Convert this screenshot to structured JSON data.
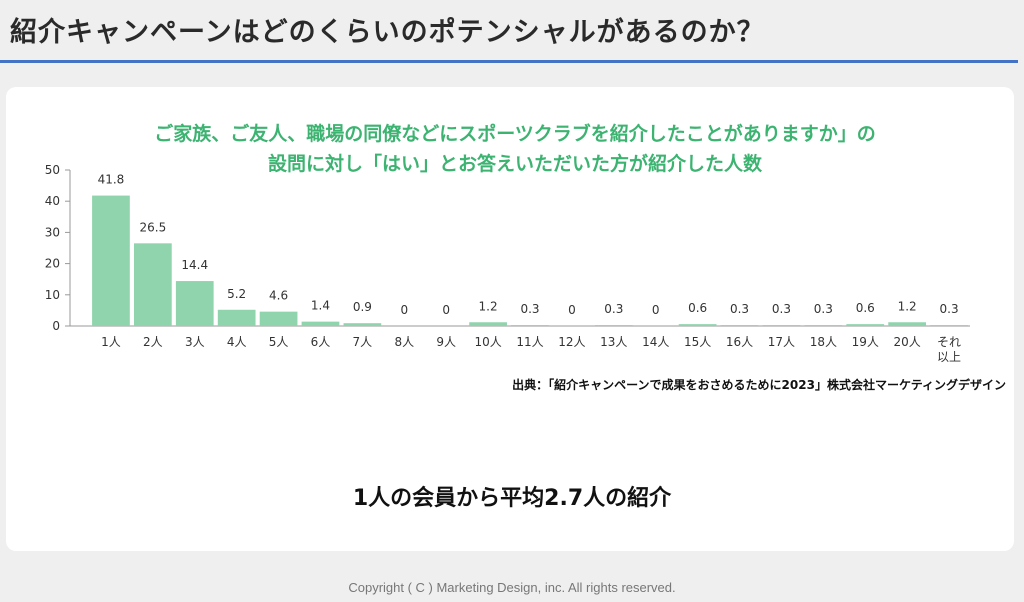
{
  "page": {
    "title": "紹介キャンペーンはどのくらいのポテンシャルがあるのか？",
    "source": "出典：「紹介キャンペーンで成果をおさめるために2023」株式会社マーケティングデザイン",
    "conclusion": "1人の会員から平均2.7人の紹介",
    "copyright": "Copyright ( C ) Marketing Design, inc. All rights reserved."
  },
  "colors": {
    "title_rule": "#4472c4",
    "chart_title": "#3cb371",
    "bar": "#8fd4ad"
  },
  "chart_data": {
    "type": "bar",
    "title_lines": [
      "ご家族、ご友人、職場の同僚などにスポーツクラブを紹介したことがありますか」の",
      "設問に対し「はい」とお答えいただいた方が紹介した人数"
    ],
    "categories": [
      "1人",
      "2人",
      "3人",
      "4人",
      "5人",
      "6人",
      "7人",
      "8人",
      "9人",
      "10人",
      "11人",
      "12人",
      "13人",
      "14人",
      "15人",
      "16人",
      "17人",
      "18人",
      "19人",
      "20人",
      "それ以上"
    ],
    "values": [
      41.8,
      26.5,
      14.4,
      5.2,
      4.6,
      1.4,
      0.9,
      0,
      0,
      1.2,
      0.3,
      0,
      0.3,
      0,
      0.6,
      0.3,
      0.3,
      0.3,
      0.6,
      1.2,
      0.3
    ],
    "value_labels": [
      "41.8",
      "26.5",
      "14.4",
      "5.2",
      "4.6",
      "1.4",
      "0.9",
      "0",
      "0",
      "1.2",
      "0.3",
      "0",
      "0.3",
      "0",
      "0.6",
      "0.3",
      "0.3",
      "0.3",
      "0.6",
      "1.2",
      "0.3"
    ],
    "y_ticks": [
      0,
      10,
      20,
      30,
      40,
      50
    ],
    "ylim": [
      0,
      50
    ],
    "grid": false,
    "legend": false
  }
}
